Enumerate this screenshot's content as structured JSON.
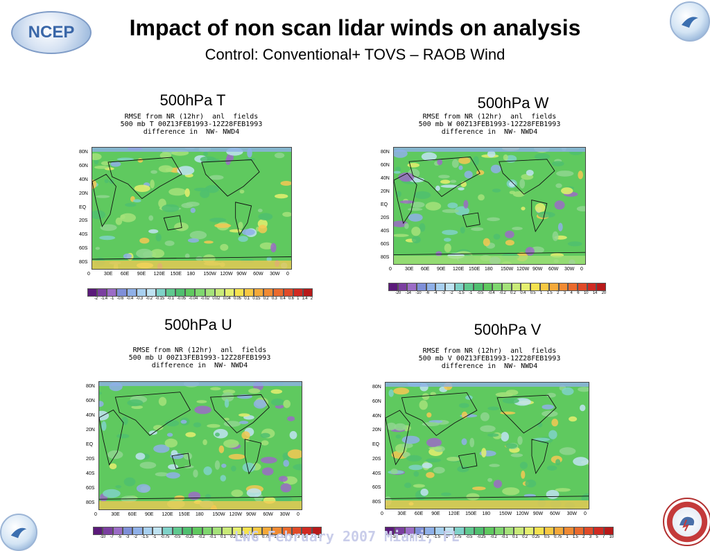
{
  "title": "Impact of non scan lidar winds on analysis",
  "subtitle": "Control: Conventional+ TOVS – RAOB Wind",
  "logos": {
    "ncep": "NCEP",
    "ncep_ring": "NATIONAL CENTERS FOR ENVIRONMENTAL PREDICTION",
    "nws_ring": "NATIONAL WEATHER SERVICE"
  },
  "footer": "LWG February 2007 Miami, FL",
  "colors": {
    "ocean_green": "#5fc95f",
    "title_text": "#000000",
    "footer_text": "#c9cdea"
  },
  "lat_labels": [
    "80N",
    "60N",
    "40N",
    "20N",
    "EQ",
    "20S",
    "40S",
    "60S",
    "80S"
  ],
  "lon_labels": [
    "0",
    "30E",
    "60E",
    "90E",
    "120E",
    "150E",
    "180",
    "150W",
    "120W",
    "90W",
    "60W",
    "30W",
    "0"
  ],
  "panels": [
    {
      "label": "500hPa T",
      "line1": "RMSE from NR (12hr)  anl  fields",
      "line2": "500 mb T 00Z13FEB1993-12Z28FEB1993",
      "line3": "difference in  NW- NWD4",
      "cbar": [
        "-2",
        "-1.4",
        "-1",
        "-0.6",
        "-0.4",
        "-0.3",
        "-0.2",
        "-0.15",
        "-0.1",
        "-0.05",
        "-0.04",
        "-0.02",
        "0.02",
        "0.04",
        "0.05",
        "0.1",
        "0.15",
        "0.2",
        "0.3",
        "0.4",
        "0.6",
        "1",
        "1.4",
        "2"
      ]
    },
    {
      "label": "500hPa W",
      "line1": "RMSE from NR (12hr)  anl  fields",
      "line2": "500 mb W 00Z13FEB1993-12Z28FEB1993",
      "line3": "difference in  NW- NWD4",
      "cbar": [
        "-20",
        "-14",
        "-10",
        "-6",
        "-4",
        "-3",
        "-2",
        "-1.5",
        "-1",
        "-0.5",
        "-0.4",
        "-0.2",
        "0.2",
        "0.4",
        "0.5",
        "1",
        "1.5",
        "2",
        "3",
        "4",
        "6",
        "10",
        "14",
        "20"
      ]
    },
    {
      "label": "500hPa U",
      "line1": "RMSE from NR (12hr)  anl  fields",
      "line2": "500 mb U 00Z13FEB1993-12Z28FEB1993",
      "line3": "difference in  NW- NWD4",
      "cbar": [
        "-10",
        "-7",
        "-5",
        "-3",
        "-2",
        "-1.5",
        "-1",
        "-0.75",
        "-0.5",
        "-0.25",
        "-0.2",
        "-0.1",
        "0.1",
        "0.2",
        "0.25",
        "0.5",
        "0.75",
        "1",
        "1.5",
        "2",
        "3",
        "5",
        "7",
        "10"
      ]
    },
    {
      "label": "500hPa V",
      "line1": "RMSE from NR (12hr)  anl  fields",
      "line2": "500 mb V 00Z13FEB1993-12Z28FEB1993",
      "line3": "difference in  NW- NWD4",
      "cbar": [
        "-10",
        "-7",
        "-5",
        "-3",
        "-2",
        "-1.5",
        "-1",
        "-0.75",
        "-0.5",
        "-0.25",
        "-0.2",
        "-0.1",
        "0.1",
        "0.2",
        "0.25",
        "0.5",
        "0.75",
        "1",
        "1.5",
        "2",
        "3",
        "5",
        "7",
        "10"
      ]
    }
  ],
  "palette": [
    "#5b1a7a",
    "#7b3fa0",
    "#9b6cc6",
    "#7f8fd8",
    "#8fb0e8",
    "#a8d0f0",
    "#bfe3f2",
    "#7fd2c8",
    "#5fc98f",
    "#4fbf6f",
    "#5fc95f",
    "#7fd76f",
    "#a5e27a",
    "#c9ea78",
    "#e5ef6f",
    "#f5e24f",
    "#f7c843",
    "#f4a93a",
    "#f08a33",
    "#ea6a2d",
    "#e04a28",
    "#d02a22",
    "#b81a1a"
  ]
}
